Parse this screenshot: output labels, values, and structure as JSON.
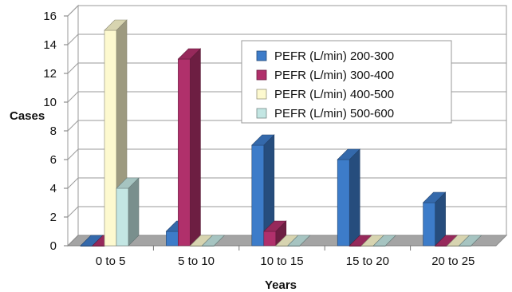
{
  "chart_data": {
    "type": "bar",
    "style": "3d-clustered",
    "title": "",
    "xlabel": "Years",
    "ylabel": "Cases",
    "ylim": [
      0,
      16
    ],
    "yticks": [
      "0",
      "2",
      "4",
      "6",
      "8",
      "10",
      "12",
      "14",
      "16"
    ],
    "categories": [
      "0 to 5",
      "5 to 10",
      "10 to 15",
      "15 to 20",
      "20 to 25"
    ],
    "series": [
      {
        "name": "PEFR (L/min) 200-300",
        "values": [
          0,
          1,
          7,
          6,
          3
        ],
        "color": "#3d7cc9"
      },
      {
        "name": "PEFR (L/min) 300-400",
        "values": [
          0,
          13,
          1,
          0,
          0
        ],
        "color": "#b0306b"
      },
      {
        "name": "PEFR (L/min) 400-500",
        "values": [
          15,
          0,
          0,
          0,
          0
        ],
        "color": "#fdf9cf"
      },
      {
        "name": "PEFR (L/min) 500-600",
        "values": [
          4,
          0,
          0,
          0,
          0
        ],
        "color": "#c3e6e3"
      }
    ],
    "grid": true,
    "legend": "top-right"
  }
}
